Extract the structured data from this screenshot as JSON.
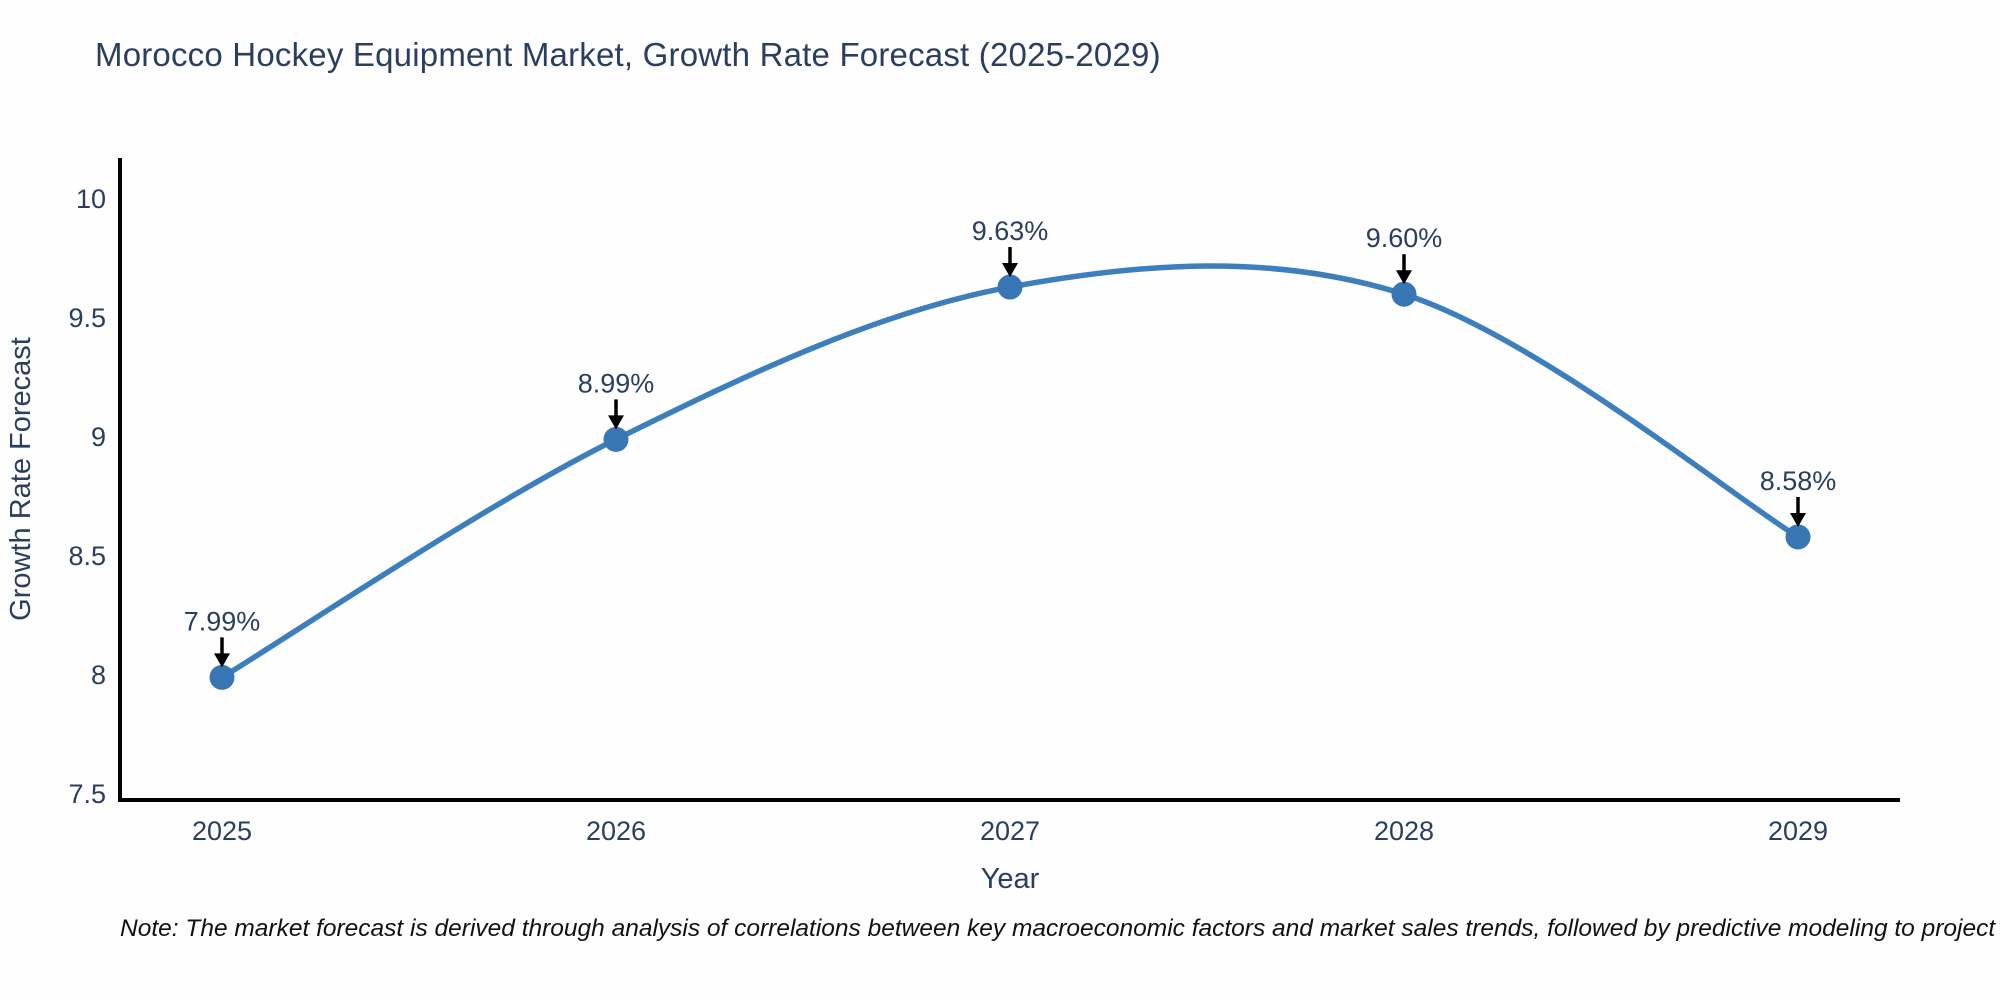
{
  "title": "Morocco Hockey Equipment Market, Growth Rate Forecast (2025-2029)",
  "note": "Note: The market forecast is derived through analysis of correlations between key macroeconomic factors and market sales trends, followed by predictive modeling to project future sales",
  "chart_data": {
    "type": "line",
    "line_shape": "spline",
    "title": "Morocco Hockey Equipment Market, Growth Rate Forecast (2025-2029)",
    "categories": [
      "2025",
      "2026",
      "2027",
      "2028",
      "2029"
    ],
    "values": [
      7.99,
      8.99,
      9.63,
      9.6,
      8.58
    ],
    "point_labels": [
      "7.99%",
      "8.99%",
      "9.63%",
      "9.60%",
      "8.58%"
    ],
    "xlabel": "Year",
    "ylabel": "Growth Rate Forecast",
    "yticks": [
      "10",
      "9.5",
      "9",
      "8.5",
      "8",
      "7.5"
    ],
    "ytick_values": [
      10,
      9.5,
      9,
      8.5,
      8,
      7.5
    ],
    "ylim": [
      7.475,
      10.2
    ],
    "grid": false,
    "legend": false,
    "colors": {
      "line": "#3d7ebd",
      "marker": "#3876b4",
      "axis": "#000000",
      "tick_text": "#2a3f5f",
      "axis_title_text": "#2a3f5f",
      "annotation_text": "#2a3f5f",
      "annotation_arrow": "#000000",
      "title_text": "#2a3f5f",
      "note_text": "#111111",
      "background": "#fefefe"
    }
  }
}
